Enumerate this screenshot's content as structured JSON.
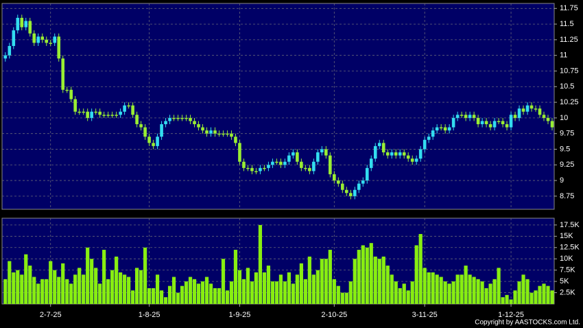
{
  "chart_data": [
    {
      "type": "candlestick",
      "up_color": "#33ddf0",
      "down_color": "#99ee33",
      "grid": true,
      "ylim": [
        8.54,
        11.83
      ],
      "yticks": [
        8.75,
        9,
        9.25,
        9.5,
        9.75,
        10,
        10.25,
        10.5,
        10.75,
        11,
        11.25,
        11.5,
        11.75
      ],
      "open": [
        10.95,
        11.0,
        11.15,
        11.4,
        11.6,
        11.45,
        11.55,
        11.35,
        11.2,
        11.3,
        11.25,
        11.2,
        11.2,
        11.3,
        10.95,
        10.45,
        10.45,
        10.3,
        10.1,
        10.1,
        10.1,
        10.0,
        10.1,
        10.1,
        10.05,
        10.05,
        10.05,
        10.05,
        10.05,
        10.1,
        10.2,
        10.2,
        10.05,
        9.9,
        9.85,
        9.7,
        9.6,
        9.55,
        9.7,
        9.9,
        9.95,
        10.0,
        10.0,
        10.0,
        10.0,
        10.0,
        9.95,
        9.9,
        9.85,
        9.8,
        9.75,
        9.8,
        9.75,
        9.75,
        9.75,
        9.75,
        9.7,
        9.6,
        9.3,
        9.2,
        9.2,
        9.15,
        9.15,
        9.2,
        9.2,
        9.25,
        9.3,
        9.3,
        9.25,
        9.3,
        9.4,
        9.45,
        9.3,
        9.2,
        9.2,
        9.15,
        9.3,
        9.45,
        9.5,
        9.4,
        9.1,
        9.0,
        8.95,
        8.85,
        8.8,
        8.75,
        8.85,
        8.95,
        9.0,
        9.2,
        9.35,
        9.55,
        9.6,
        9.45,
        9.4,
        9.45,
        9.4,
        9.45,
        9.4,
        9.35,
        9.3,
        9.35,
        9.5,
        9.65,
        9.7,
        9.8,
        9.85,
        9.85,
        9.8,
        9.85,
        10.0,
        10.05,
        10.05,
        10.0,
        10.05,
        10.0,
        9.9,
        9.95,
        9.9,
        9.85,
        9.95,
        9.95,
        9.9,
        9.85,
        10.05,
        10.0,
        10.15,
        10.1,
        10.2,
        10.15,
        10.15,
        10.05,
        10.0,
        9.95
      ],
      "high": [
        11.05,
        11.2,
        11.45,
        11.65,
        11.65,
        11.6,
        11.6,
        11.4,
        11.35,
        11.35,
        11.3,
        11.25,
        11.35,
        11.35,
        11.0,
        10.5,
        10.5,
        10.35,
        10.15,
        10.15,
        10.15,
        10.15,
        10.15,
        10.15,
        10.1,
        10.1,
        10.1,
        10.1,
        10.15,
        10.25,
        10.25,
        10.25,
        10.1,
        9.95,
        9.9,
        9.75,
        9.65,
        9.75,
        9.95,
        10.0,
        10.05,
        10.05,
        10.05,
        10.05,
        10.05,
        10.05,
        10.0,
        9.95,
        9.9,
        9.85,
        9.85,
        9.85,
        9.8,
        9.8,
        9.8,
        9.8,
        9.75,
        9.65,
        9.35,
        9.25,
        9.25,
        9.2,
        9.25,
        9.25,
        9.3,
        9.35,
        9.35,
        9.35,
        9.35,
        9.45,
        9.5,
        9.5,
        9.35,
        9.25,
        9.25,
        9.35,
        9.5,
        9.55,
        9.55,
        9.45,
        9.15,
        9.05,
        9.0,
        8.9,
        8.85,
        8.9,
        9.0,
        9.05,
        9.25,
        9.4,
        9.6,
        9.65,
        9.65,
        9.5,
        9.5,
        9.5,
        9.5,
        9.5,
        9.45,
        9.4,
        9.4,
        9.55,
        9.7,
        9.75,
        9.85,
        9.9,
        9.9,
        9.9,
        9.9,
        10.05,
        10.1,
        10.1,
        10.1,
        10.1,
        10.1,
        10.05,
        10.0,
        10.0,
        9.95,
        10.0,
        10.0,
        10.0,
        9.95,
        10.1,
        10.1,
        10.2,
        10.2,
        10.25,
        10.25,
        10.2,
        10.2,
        10.1,
        10.05,
        10.0
      ],
      "low": [
        10.9,
        10.95,
        11.1,
        11.35,
        11.4,
        11.4,
        11.3,
        11.15,
        11.15,
        11.2,
        11.15,
        11.15,
        11.15,
        10.9,
        10.4,
        10.4,
        10.25,
        10.05,
        10.05,
        10.05,
        9.95,
        9.95,
        10.05,
        10.0,
        10.0,
        10.0,
        10.0,
        10.0,
        10.0,
        10.05,
        10.15,
        10.0,
        9.85,
        9.8,
        9.65,
        9.55,
        9.5,
        9.5,
        9.65,
        9.85,
        9.9,
        9.95,
        9.95,
        9.95,
        9.95,
        9.9,
        9.85,
        9.8,
        9.75,
        9.7,
        9.7,
        9.7,
        9.7,
        9.7,
        9.7,
        9.65,
        9.55,
        9.25,
        9.15,
        9.15,
        9.1,
        9.1,
        9.1,
        9.15,
        9.15,
        9.2,
        9.25,
        9.2,
        9.2,
        9.25,
        9.35,
        9.25,
        9.15,
        9.15,
        9.1,
        9.1,
        9.25,
        9.4,
        9.35,
        9.05,
        8.95,
        8.9,
        8.8,
        8.75,
        8.7,
        8.7,
        8.8,
        8.9,
        8.95,
        9.15,
        9.3,
        9.5,
        9.4,
        9.35,
        9.35,
        9.35,
        9.35,
        9.35,
        9.3,
        9.25,
        9.25,
        9.3,
        9.45,
        9.6,
        9.65,
        9.75,
        9.8,
        9.75,
        9.75,
        9.8,
        9.95,
        10.0,
        9.95,
        9.95,
        9.95,
        9.85,
        9.85,
        9.85,
        9.8,
        9.8,
        9.9,
        9.85,
        9.8,
        9.8,
        9.95,
        9.95,
        10.05,
        10.05,
        10.1,
        10.1,
        10.0,
        9.95,
        9.9,
        9.8
      ],
      "close": [
        11.0,
        11.15,
        11.4,
        11.6,
        11.45,
        11.55,
        11.35,
        11.2,
        11.3,
        11.25,
        11.2,
        11.2,
        11.3,
        10.95,
        10.45,
        10.45,
        10.3,
        10.1,
        10.1,
        10.1,
        10.0,
        10.1,
        10.1,
        10.05,
        10.05,
        10.05,
        10.05,
        10.05,
        10.1,
        10.2,
        10.2,
        10.05,
        9.9,
        9.85,
        9.7,
        9.6,
        9.55,
        9.7,
        9.9,
        9.95,
        10.0,
        10.0,
        10.0,
        10.0,
        10.0,
        9.95,
        9.9,
        9.85,
        9.8,
        9.75,
        9.8,
        9.75,
        9.75,
        9.75,
        9.75,
        9.7,
        9.6,
        9.3,
        9.2,
        9.2,
        9.15,
        9.15,
        9.2,
        9.2,
        9.25,
        9.3,
        9.3,
        9.25,
        9.3,
        9.4,
        9.45,
        9.3,
        9.2,
        9.2,
        9.15,
        9.3,
        9.45,
        9.5,
        9.4,
        9.1,
        9.0,
        8.95,
        8.85,
        8.8,
        8.75,
        8.85,
        8.95,
        9.0,
        9.2,
        9.35,
        9.55,
        9.6,
        9.45,
        9.4,
        9.45,
        9.4,
        9.45,
        9.4,
        9.35,
        9.3,
        9.35,
        9.5,
        9.65,
        9.7,
        9.8,
        9.85,
        9.85,
        9.8,
        9.85,
        10.0,
        10.05,
        10.05,
        10.0,
        10.05,
        10.0,
        9.9,
        9.95,
        9.9,
        9.85,
        9.95,
        9.95,
        9.9,
        9.85,
        10.05,
        10.0,
        10.15,
        10.1,
        10.2,
        10.15,
        10.15,
        10.05,
        10.0,
        9.95,
        9.85
      ]
    },
    {
      "type": "bar",
      "color": "#88ee11",
      "grid": true,
      "ylim": [
        0,
        19000
      ],
      "yticks": [
        {
          "value": 2500,
          "label": "2.5K"
        },
        {
          "value": 5000,
          "label": "5K"
        },
        {
          "value": 7500,
          "label": "7.5K"
        },
        {
          "value": 10000,
          "label": "10K"
        },
        {
          "value": 12500,
          "label": "12.5K"
        },
        {
          "value": 15000,
          "label": "15K"
        },
        {
          "value": 17500,
          "label": "17.5K"
        }
      ],
      "xlim": [
        -0.8,
        133.5
      ],
      "xticks": [
        {
          "value": 11,
          "label": "2-7-25"
        },
        {
          "value": 35,
          "label": "1-8-25"
        },
        {
          "value": 57,
          "label": "1-9-25"
        },
        {
          "value": 80,
          "label": "2-10-25"
        },
        {
          "value": 102,
          "label": "3-11-25"
        },
        {
          "value": 123,
          "label": "1-12-25"
        }
      ],
      "values": [
        5500,
        9500,
        7000,
        7500,
        6500,
        11000,
        8500,
        6000,
        4500,
        5500,
        5500,
        9500,
        7500,
        6000,
        9000,
        5500,
        4500,
        6500,
        8000,
        6500,
        12500,
        10000,
        8000,
        4500,
        12000,
        5500,
        7500,
        10500,
        7000,
        6500,
        6000,
        3000,
        8000,
        7500,
        12500,
        3500,
        3500,
        6500,
        3000,
        1500,
        4000,
        6000,
        2500,
        4000,
        5000,
        6000,
        5500,
        4500,
        5000,
        6000,
        4500,
        3500,
        3500,
        10000,
        3000,
        5000,
        12000,
        7500,
        5500,
        8000,
        5000,
        7000,
        17500,
        7000,
        8500,
        5000,
        5000,
        6500,
        5000,
        7000,
        4500,
        6500,
        9000,
        5500,
        10500,
        6500,
        7500,
        10000,
        10000,
        12000,
        5500,
        4000,
        2500,
        2500,
        5000,
        10000,
        12000,
        13000,
        12500,
        13500,
        10500,
        10000,
        10500,
        8500,
        6500,
        5000,
        3500,
        4500,
        3000,
        5000,
        13000,
        15500,
        8000,
        7000,
        7000,
        6500,
        6000,
        5000,
        4500,
        5000,
        6500,
        6500,
        8500,
        6500,
        6000,
        5500,
        5000,
        3500,
        4500,
        5500,
        8000,
        1500,
        2000,
        1000,
        3000,
        5000,
        6500,
        5500,
        2500,
        3000,
        4000,
        4500,
        4000,
        3000
      ]
    }
  ],
  "footer": "Copyright by AASTOCKS.com Ltd."
}
